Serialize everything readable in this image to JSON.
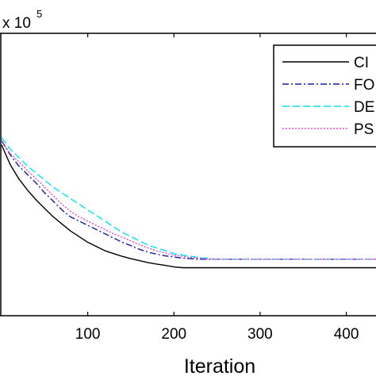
{
  "chart_data": {
    "type": "line",
    "title": "",
    "xlabel": "Iteration",
    "ylabel": "",
    "y_exponent_text": "x 10",
    "y_exponent_power": "5",
    "xlim": [
      0,
      440
    ],
    "ylim": [
      0,
      10
    ],
    "x_ticks": [
      100,
      200,
      300,
      400
    ],
    "x_tick_labels": [
      "100",
      "200",
      "300",
      "400"
    ],
    "grid": false,
    "legend_position": "top-right",
    "series": [
      {
        "name": "CI",
        "color": "#000000",
        "dash": "solid",
        "points": [
          [
            0,
            6.05
          ],
          [
            5,
            5.7
          ],
          [
            10,
            5.35
          ],
          [
            20,
            4.85
          ],
          [
            30,
            4.45
          ],
          [
            40,
            4.1
          ],
          [
            50,
            3.8
          ],
          [
            60,
            3.5
          ],
          [
            70,
            3.25
          ],
          [
            80,
            3.0
          ],
          [
            90,
            2.8
          ],
          [
            100,
            2.6
          ],
          [
            110,
            2.45
          ],
          [
            120,
            2.3
          ],
          [
            130,
            2.2
          ],
          [
            140,
            2.1
          ],
          [
            150,
            2.02
          ],
          [
            160,
            1.95
          ],
          [
            170,
            1.88
          ],
          [
            180,
            1.83
          ],
          [
            190,
            1.78
          ],
          [
            200,
            1.73
          ],
          [
            210,
            1.7
          ],
          [
            220,
            1.7
          ],
          [
            300,
            1.7
          ],
          [
            440,
            1.7
          ]
        ]
      },
      {
        "name": "FO",
        "color": "#1a1aa6",
        "dash": "8,3,2,3",
        "points": [
          [
            0,
            6.2
          ],
          [
            5,
            5.95
          ],
          [
            10,
            5.7
          ],
          [
            20,
            5.3
          ],
          [
            30,
            5.0
          ],
          [
            40,
            4.7
          ],
          [
            50,
            4.35
          ],
          [
            60,
            4.05
          ],
          [
            70,
            3.75
          ],
          [
            80,
            3.5
          ],
          [
            90,
            3.35
          ],
          [
            100,
            3.2
          ],
          [
            110,
            3.05
          ],
          [
            120,
            2.9
          ],
          [
            130,
            2.75
          ],
          [
            140,
            2.6
          ],
          [
            150,
            2.48
          ],
          [
            160,
            2.35
          ],
          [
            170,
            2.25
          ],
          [
            180,
            2.18
          ],
          [
            190,
            2.12
          ],
          [
            200,
            2.08
          ],
          [
            210,
            2.04
          ],
          [
            220,
            2.02
          ],
          [
            230,
            2.0
          ],
          [
            300,
            2.0
          ],
          [
            440,
            2.0
          ]
        ]
      },
      {
        "name": "DE",
        "color": "#00e5ee",
        "dash": "9,4",
        "points": [
          [
            0,
            6.3
          ],
          [
            5,
            6.1
          ],
          [
            10,
            5.9
          ],
          [
            20,
            5.6
          ],
          [
            30,
            5.3
          ],
          [
            40,
            5.05
          ],
          [
            50,
            4.8
          ],
          [
            60,
            4.55
          ],
          [
            70,
            4.35
          ],
          [
            80,
            4.15
          ],
          [
            90,
            3.95
          ],
          [
            100,
            3.75
          ],
          [
            110,
            3.55
          ],
          [
            120,
            3.35
          ],
          [
            130,
            3.15
          ],
          [
            140,
            2.95
          ],
          [
            150,
            2.8
          ],
          [
            160,
            2.65
          ],
          [
            170,
            2.5
          ],
          [
            180,
            2.4
          ],
          [
            190,
            2.3
          ],
          [
            200,
            2.2
          ],
          [
            210,
            2.15
          ],
          [
            220,
            2.1
          ],
          [
            230,
            2.06
          ],
          [
            240,
            2.03
          ],
          [
            250,
            2.0
          ],
          [
            260,
            2.0
          ],
          [
            300,
            2.0
          ],
          [
            440,
            2.0
          ]
        ]
      },
      {
        "name": "PS",
        "color": "#ee44cc",
        "dash": "2,2",
        "points": [
          [
            0,
            6.2
          ],
          [
            5,
            5.95
          ],
          [
            10,
            5.75
          ],
          [
            20,
            5.45
          ],
          [
            30,
            5.15
          ],
          [
            40,
            4.85
          ],
          [
            50,
            4.55
          ],
          [
            60,
            4.25
          ],
          [
            70,
            3.95
          ],
          [
            80,
            3.7
          ],
          [
            90,
            3.5
          ],
          [
            100,
            3.35
          ],
          [
            110,
            3.2
          ],
          [
            120,
            3.05
          ],
          [
            130,
            2.9
          ],
          [
            140,
            2.78
          ],
          [
            150,
            2.65
          ],
          [
            160,
            2.52
          ],
          [
            170,
            2.4
          ],
          [
            180,
            2.3
          ],
          [
            190,
            2.22
          ],
          [
            200,
            2.15
          ],
          [
            210,
            2.1
          ],
          [
            220,
            2.06
          ],
          [
            230,
            2.03
          ],
          [
            240,
            2.01
          ],
          [
            250,
            2.0
          ],
          [
            300,
            2.0
          ],
          [
            440,
            2.0
          ]
        ]
      }
    ]
  }
}
